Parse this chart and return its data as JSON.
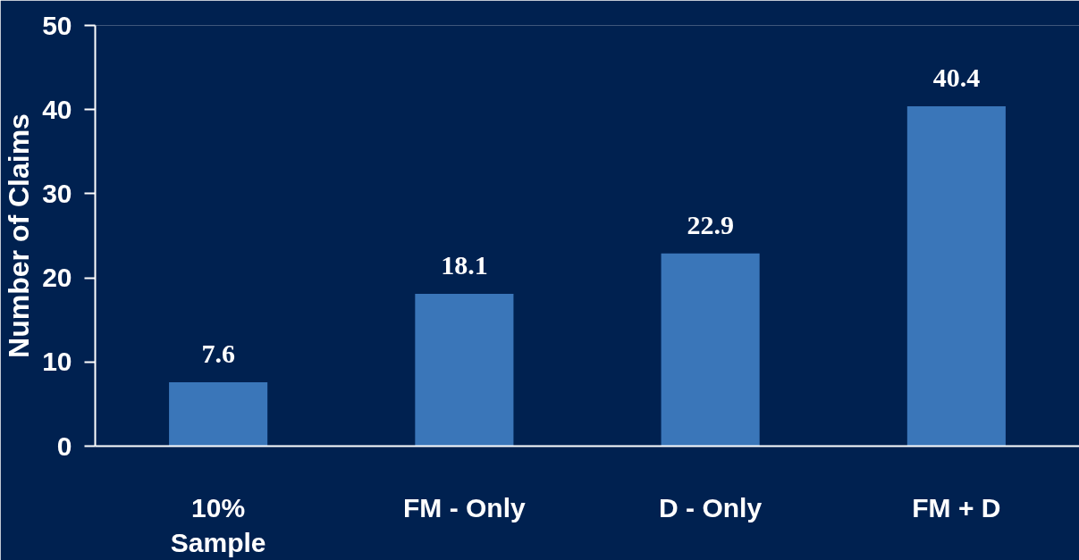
{
  "chart_data": {
    "type": "bar",
    "ylabel": "Number of Claims",
    "categories": [
      "10%\nSample",
      "FM - Only",
      "D - Only",
      "FM + D"
    ],
    "values": [
      7.6,
      18.1,
      22.9,
      40.4
    ],
    "color": "#3a76b9",
    "ylim": [
      0,
      50
    ],
    "yticks": [
      0,
      10,
      20,
      30,
      40,
      50
    ],
    "data_labels": true
  }
}
